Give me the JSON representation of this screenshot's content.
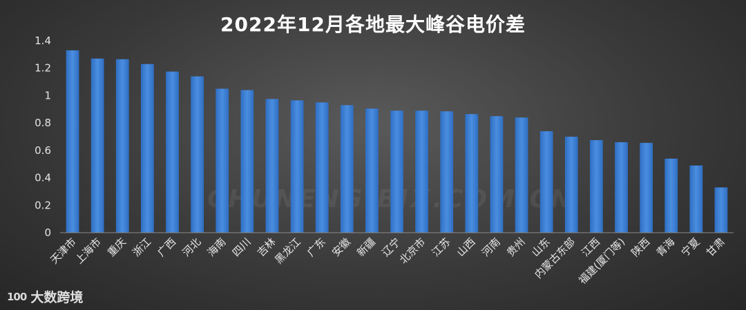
{
  "watermark": "CHUNENG.BJX.COM.CN",
  "brand": {
    "logo": "100",
    "name": "大数跨境"
  },
  "chart_data": {
    "type": "bar",
    "title": "2022年12月各地最大峰谷电价差",
    "xlabel": "",
    "ylabel": "",
    "ylim": [
      0,
      1.4
    ],
    "yticks": [
      "0",
      "0.2",
      "0.4",
      "0.6",
      "0.8",
      "1",
      "1.2",
      "1.4"
    ],
    "grid": false,
    "bar_color": "#3f7fd0",
    "categories": [
      "天津市",
      "上海市",
      "重庆",
      "浙江",
      "广西",
      "河北",
      "海南",
      "四川",
      "吉林",
      "黑龙江",
      "广东",
      "安徽",
      "新疆",
      "辽宁",
      "北京市",
      "江苏",
      "山西",
      "河南",
      "贵州",
      "山东",
      "内蒙古东部",
      "江西",
      "福建(厦门等)",
      "陕西",
      "青海",
      "宁夏",
      "甘肃"
    ],
    "values": [
      1.33,
      1.27,
      1.265,
      1.23,
      1.175,
      1.14,
      1.05,
      1.04,
      0.975,
      0.965,
      0.95,
      0.93,
      0.905,
      0.89,
      0.89,
      0.885,
      0.865,
      0.85,
      0.84,
      0.74,
      0.7,
      0.675,
      0.66,
      0.655,
      0.54,
      0.49,
      0.33
    ]
  }
}
